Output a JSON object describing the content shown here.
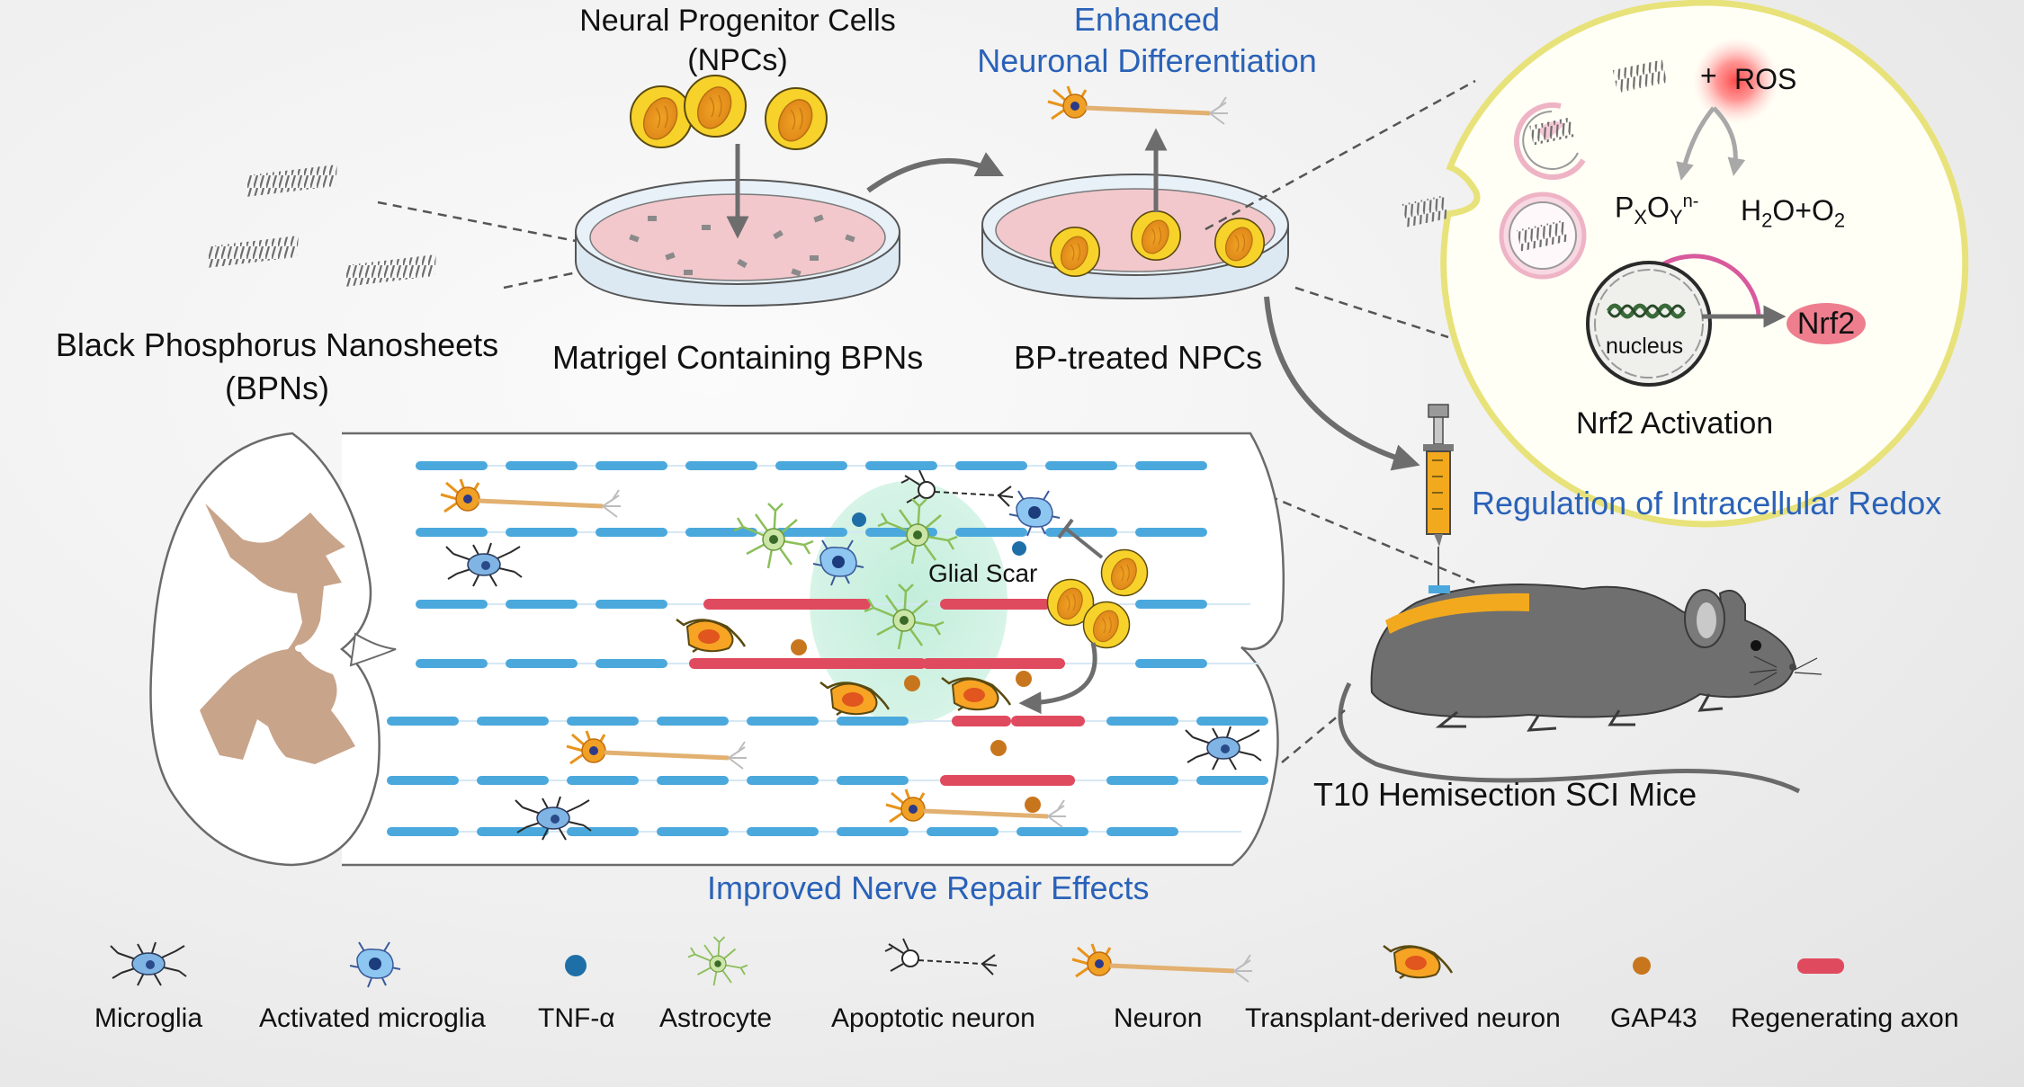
{
  "labels": {
    "npc_title_1": "Neural Progenitor Cells",
    "npc_title_2": "(NPCs)",
    "enhanced_1": "Enhanced",
    "enhanced_2": "Neuronal Differentiation",
    "bpn_1": "Black Phosphorus Nanosheets",
    "bpn_2": "(BPNs)",
    "matrigel": "Matrigel Containing BPNs",
    "bp_treated": "BP-treated NPCs",
    "ros": "ROS",
    "plus": "+",
    "pxoy_base": "P",
    "pxoy_x": "X",
    "pxoy_o": "O",
    "pxoy_y": "Y",
    "pxoy_sup": "n-",
    "h2o_a": "H",
    "h2o_2": "2",
    "h2o_b": "O+O",
    "h2o_c": "2",
    "nucleus": "nucleus",
    "nrf2": "Nrf2",
    "nrf2_activation": "Nrf2 Activation",
    "redox": "Regulation of Intracellular Redox",
    "glial_scar": "Glial  Scar",
    "mice": "T10 Hemisection SCI Mice",
    "repair": "Improved Nerve Repair Effects"
  },
  "legend": {
    "microglia": "Microglia",
    "activated_microglia": "Activated  microglia",
    "tnf": "TNF-α",
    "astrocyte": "Astrocyte",
    "apoptotic": "Apoptotic  neuron",
    "neuron": "Neuron",
    "transplant": "Transplant-derived  neuron",
    "gap43": "GAP43",
    "axon": "Regenerating  axon"
  },
  "colors": {
    "accent_blue": "#2a62b8",
    "npc_yellow": "#f7d22a",
    "npc_orange": "#e8941a",
    "axon_blue": "#4aa8dc",
    "axon_red": "#e04a5f",
    "tissue_tan": "#c8a48a",
    "nrf2_pink": "#ee7e8e",
    "cell_border": "#ece68a",
    "mouse_gray": "#6a6a6a",
    "tnf_blue": "#1e6fa8",
    "gap43_orange": "#c8761e"
  }
}
